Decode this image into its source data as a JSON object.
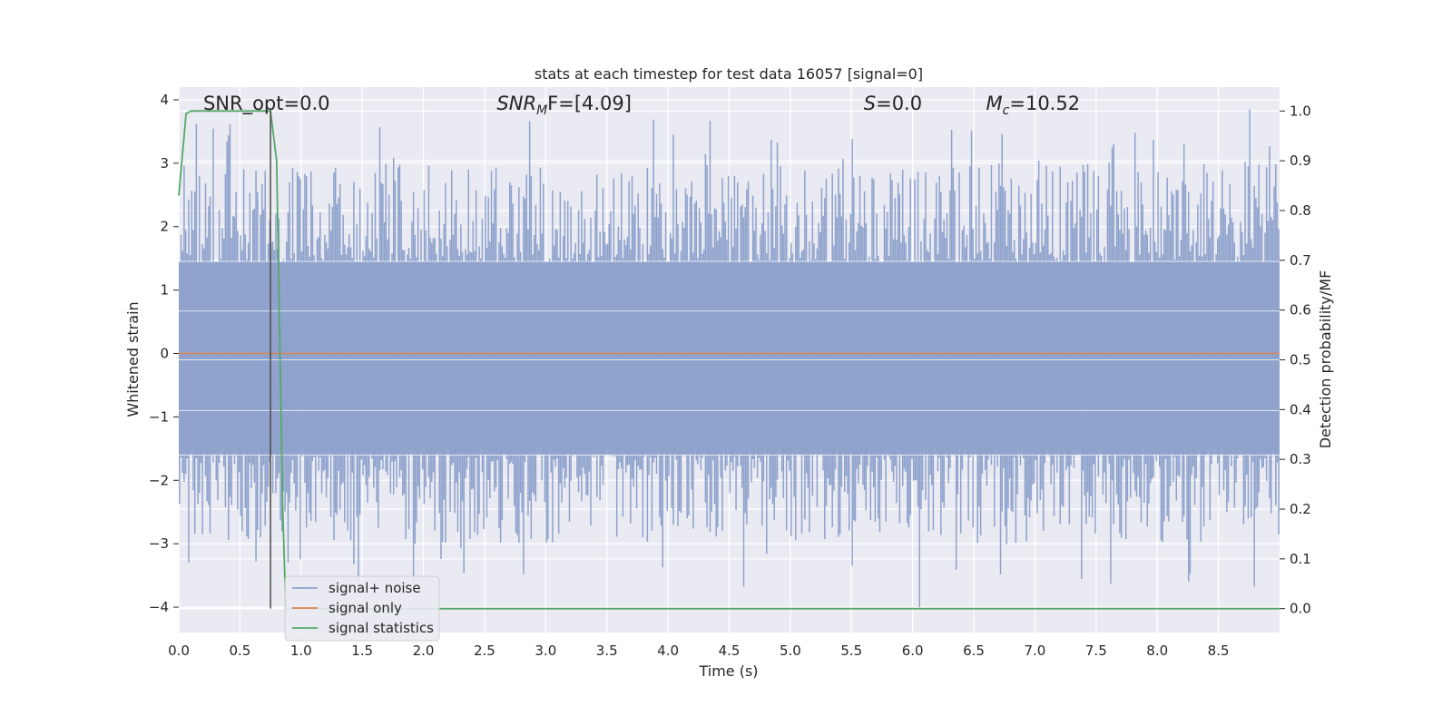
{
  "chart_data": {
    "type": "line",
    "title": "stats at each timestep for test data 16057 [signal=0]",
    "xlabel": "Time (s)",
    "ylabel": "Whitened strain",
    "y2label": "Detection probability/MF",
    "xlim": [
      0.0,
      9.0
    ],
    "ylim": [
      -4.4,
      4.2
    ],
    "y2lim": [
      -0.048,
      1.048
    ],
    "grid": true,
    "legend_position": "lower-left",
    "x_ticks": [
      "0.0",
      "0.5",
      "1.0",
      "1.5",
      "2.0",
      "2.5",
      "3.0",
      "3.5",
      "4.0",
      "4.5",
      "5.0",
      "5.5",
      "6.0",
      "6.5",
      "7.0",
      "7.5",
      "8.0",
      "8.5"
    ],
    "y_ticks": [
      "−4",
      "−3",
      "−2",
      "−1",
      "0",
      "1",
      "2",
      "3",
      "4"
    ],
    "y2_ticks": [
      "0.0",
      "0.1",
      "0.2",
      "0.3",
      "0.4",
      "0.5",
      "0.6",
      "0.7",
      "0.8",
      "0.9",
      "1.0"
    ],
    "annotations": [
      {
        "text": "SNR_opt=0.0",
        "x": 0.2
      },
      {
        "text": "SNR",
        "sub": "M",
        "tail": "F=[4.09]",
        "italic": true,
        "x": 2.6
      },
      {
        "text": "S",
        "tail": "=0.0",
        "italic": true,
        "x": 5.6
      },
      {
        "text": "M",
        "sub": "c",
        "tail": "=10.52",
        "italic": true,
        "x": 6.6
      }
    ],
    "vline_x": 0.75,
    "series": [
      {
        "name": "signal+ noise",
        "color": "#8ea2cc",
        "axis": "left",
        "sample_count": 720,
        "amplitude_range": [
          -4.0,
          3.85
        ]
      },
      {
        "name": "signal only",
        "color": "#dd8452",
        "axis": "left",
        "x": [
          0.0,
          9.0
        ],
        "y": [
          0.0,
          0.0
        ]
      },
      {
        "name": "signal statistics",
        "color": "#55a868",
        "axis": "right",
        "x": [
          0.0,
          0.06,
          0.1,
          0.2,
          0.3,
          0.4,
          0.5,
          0.6,
          0.7,
          0.75,
          0.8,
          0.85,
          0.875,
          0.9,
          1.0,
          2.0,
          3.0,
          4.0,
          5.0,
          6.0,
          7.0,
          8.0,
          9.0
        ],
        "y": [
          0.83,
          0.995,
          1.0,
          1.0,
          1.0,
          1.0,
          1.0,
          1.0,
          1.0,
          1.0,
          0.9,
          0.2,
          0.0,
          0.0,
          0.0,
          0.0,
          0.0,
          0.0,
          0.0,
          0.0,
          0.0,
          0.0,
          0.0
        ]
      }
    ]
  }
}
